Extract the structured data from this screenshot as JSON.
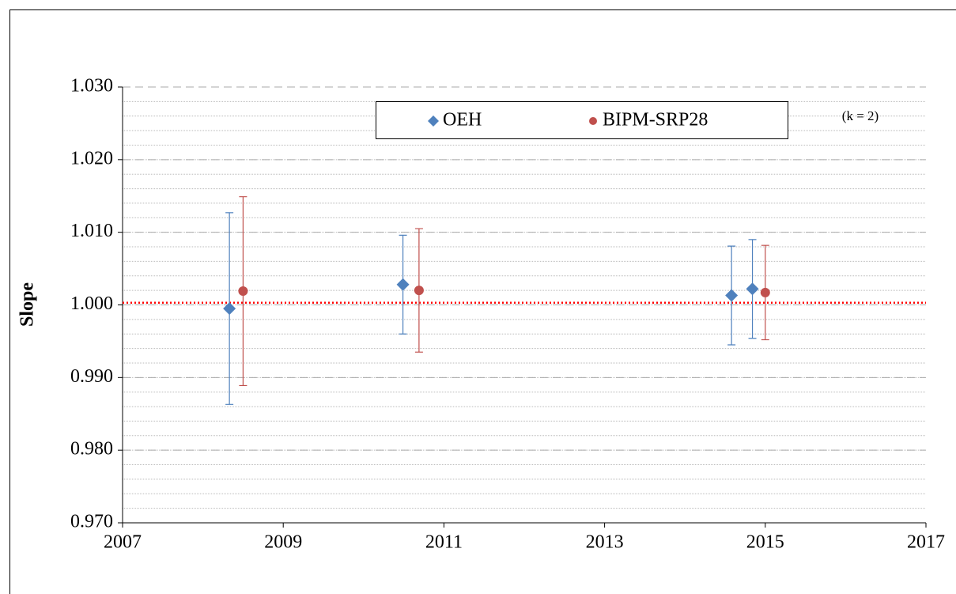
{
  "chart_data": {
    "type": "scatter",
    "ylabel": "Slope",
    "annotation": "(k = 2)",
    "xlim": [
      2007,
      2017
    ],
    "xticks": [
      2007,
      2009,
      2011,
      2013,
      2015,
      2017
    ],
    "ylim": [
      0.97,
      1.03
    ],
    "yticks": [
      {
        "value": 0.97,
        "label": "0.970"
      },
      {
        "value": 0.98,
        "label": "0.980"
      },
      {
        "value": 0.99,
        "label": "0.990"
      },
      {
        "value": 1.0,
        "label": "1.000"
      },
      {
        "value": 1.01,
        "label": "1.010"
      },
      {
        "value": 1.02,
        "label": "1.020"
      },
      {
        "value": 1.03,
        "label": "1.030"
      }
    ],
    "minor_grid_step": 0.002,
    "grid": true,
    "legend": "top",
    "reference_line": {
      "value": 1.0003,
      "color": "#ff0000"
    },
    "series": [
      {
        "name": "OEH",
        "color": "#4f81bd",
        "marker": "diamond",
        "x": [
          2008.33,
          2010.49,
          2014.58,
          2014.84
        ],
        "values": [
          0.9995,
          1.0028,
          1.0013,
          1.0022
        ],
        "errors": [
          0.0132,
          0.0068,
          0.0068,
          0.0068
        ]
      },
      {
        "name": "BIPM-SRP28",
        "color": "#c0504d",
        "marker": "circle",
        "x": [
          2008.5,
          2010.69,
          2015.0
        ],
        "values": [
          1.0019,
          1.002,
          1.0017
        ],
        "errors": [
          0.013,
          0.0085,
          0.0065
        ]
      }
    ]
  }
}
